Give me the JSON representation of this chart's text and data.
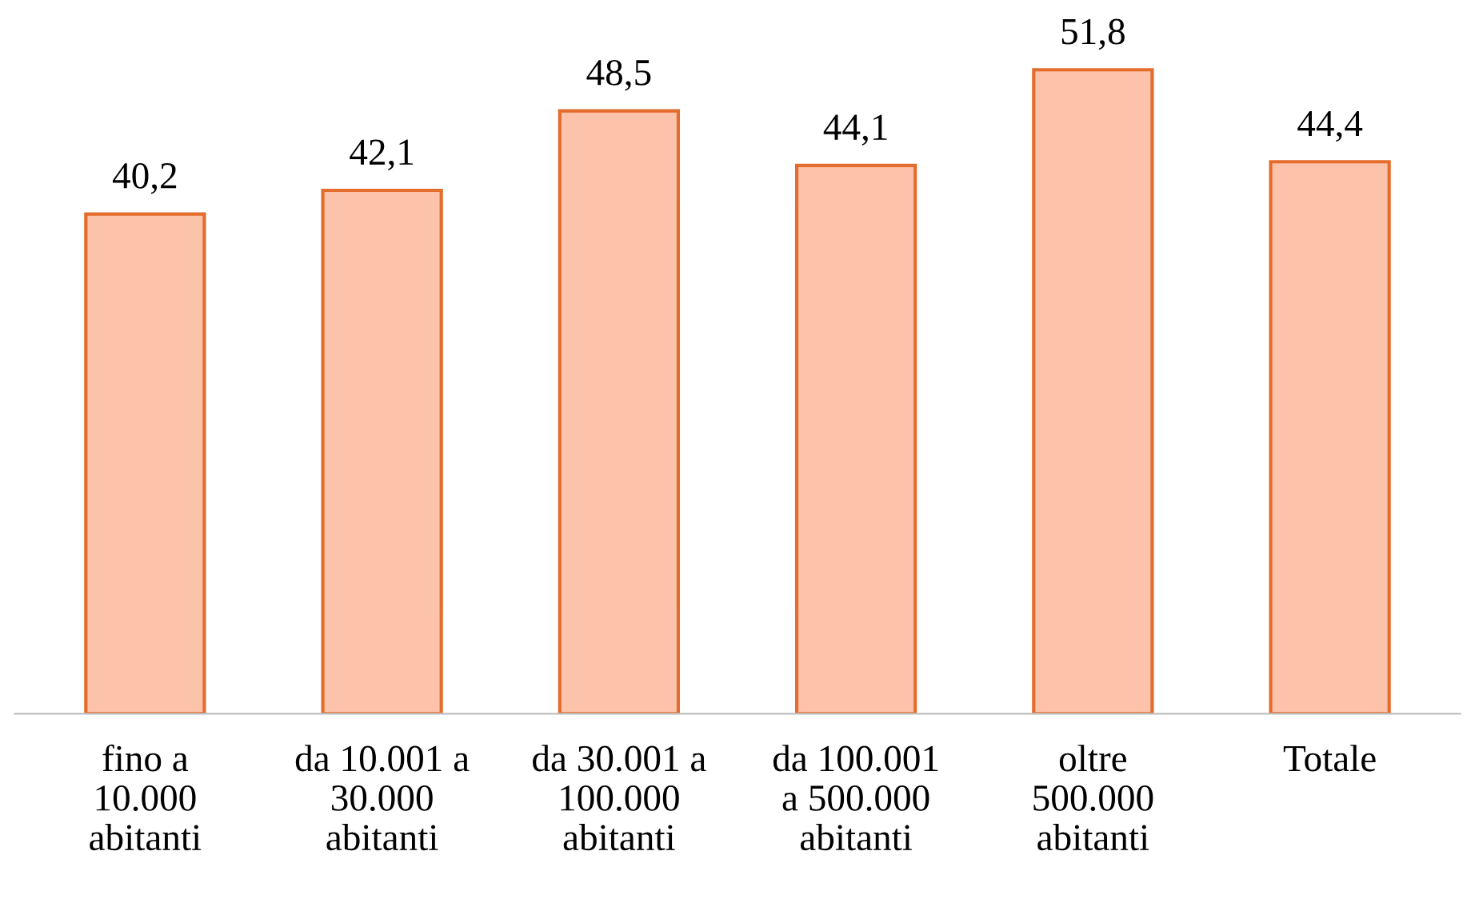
{
  "chart_data": {
    "type": "bar",
    "categories": [
      "fino a\n10.000\nabitanti",
      "da 10.001 a\n30.000\nabitanti",
      "da 30.001 a\n100.000\nabitanti",
      "da 100.001\na 500.000\nabitanti",
      "oltre\n500.000\nabitanti",
      "Totale"
    ],
    "values": [
      40.2,
      42.1,
      48.5,
      44.1,
      51.8,
      44.4
    ],
    "value_labels": [
      "40,2",
      "42,1",
      "48,5",
      "44,1",
      "51,8",
      "44,4"
    ],
    "color": "#fcc3aa",
    "grid": false,
    "legend": false
  }
}
